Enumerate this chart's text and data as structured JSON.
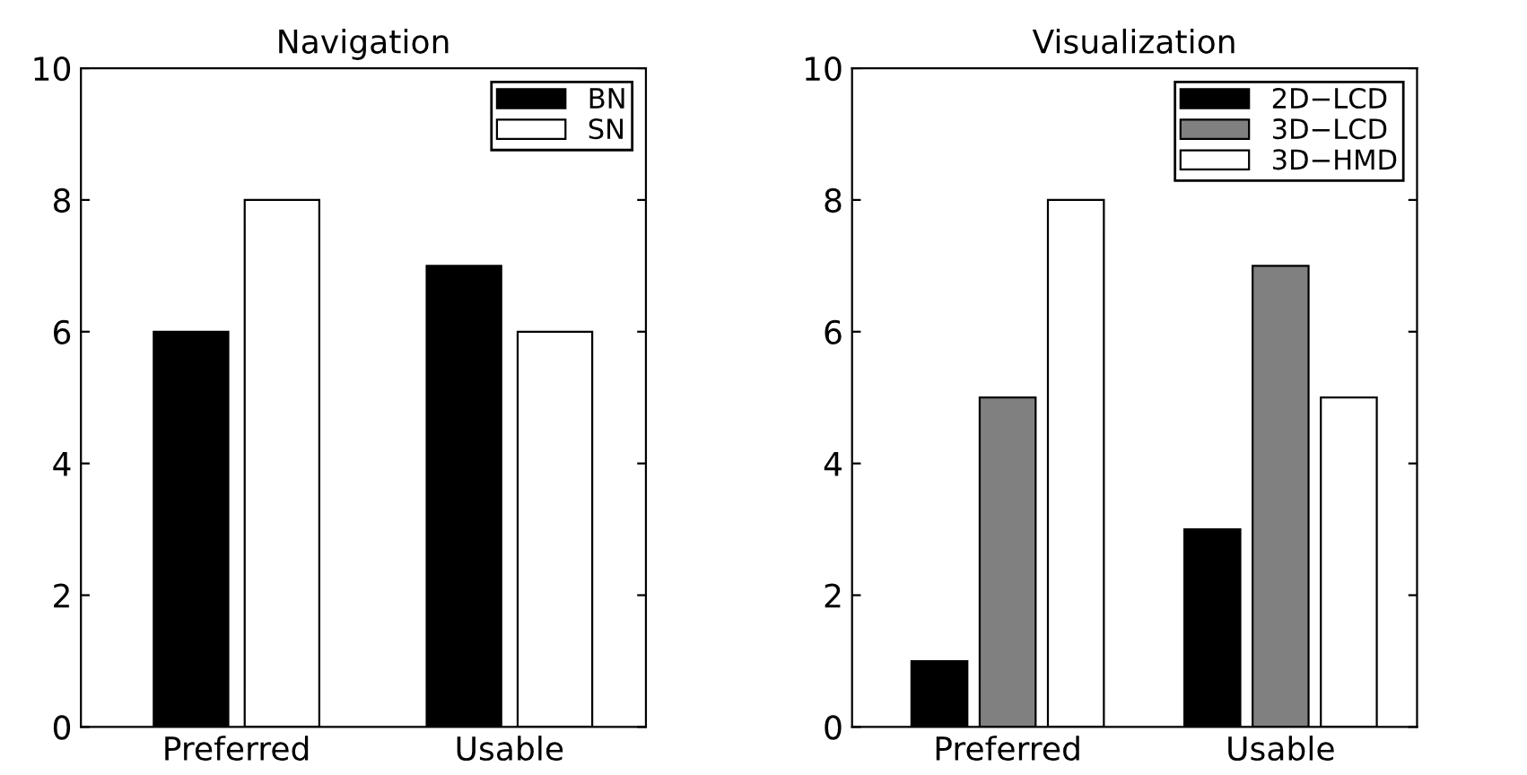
{
  "chart_data": [
    {
      "type": "bar",
      "title": "Navigation",
      "categories": [
        "Preferred",
        "Usable"
      ],
      "ylim": [
        0,
        10
      ],
      "yticks": [
        0,
        2,
        4,
        6,
        8,
        10
      ],
      "legend": "top right",
      "series": [
        {
          "name": "BN",
          "color": "#000000",
          "values": [
            6,
            7
          ]
        },
        {
          "name": "SN",
          "color": "#ffffff",
          "values": [
            8,
            6
          ]
        }
      ]
    },
    {
      "type": "bar",
      "title": "Visualization",
      "categories": [
        "Preferred",
        "Usable"
      ],
      "ylim": [
        0,
        10
      ],
      "yticks": [
        0,
        2,
        4,
        6,
        8,
        10
      ],
      "legend": "top right",
      "series": [
        {
          "name": "2D−LCD",
          "color": "#000000",
          "values": [
            1,
            3
          ]
        },
        {
          "name": "3D−LCD",
          "color": "#808080",
          "values": [
            5,
            7
          ]
        },
        {
          "name": "3D−HMD",
          "color": "#ffffff",
          "values": [
            8,
            5
          ]
        }
      ]
    }
  ]
}
